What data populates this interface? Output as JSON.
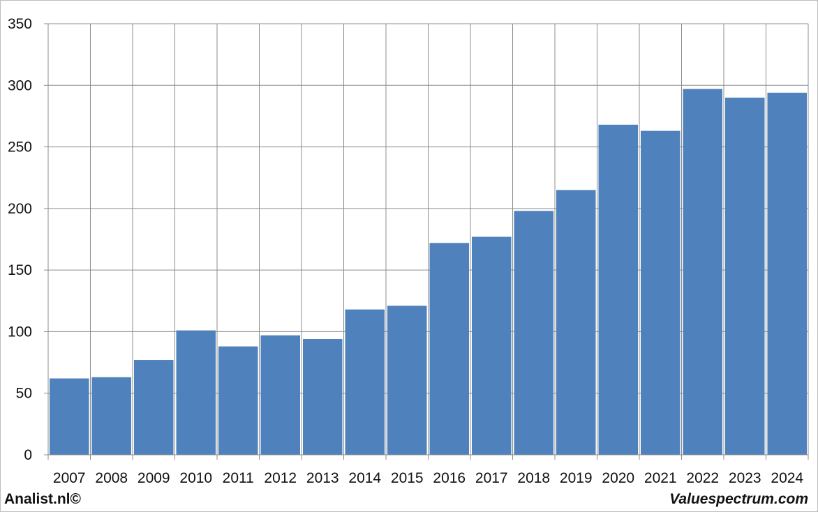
{
  "chart_data": {
    "type": "bar",
    "title": "",
    "xlabel": "",
    "ylabel": "",
    "categories": [
      "2007",
      "2008",
      "2009",
      "2010",
      "2011",
      "2012",
      "2013",
      "2014",
      "2015",
      "2016",
      "2017",
      "2018",
      "2019",
      "2020",
      "2021",
      "2022",
      "2023",
      "2024"
    ],
    "values": [
      62,
      63,
      77,
      101,
      88,
      97,
      94,
      118,
      121,
      172,
      177,
      198,
      215,
      268,
      263,
      297,
      290,
      294
    ],
    "ylim": [
      0,
      350
    ],
    "yticks": [
      0,
      50,
      100,
      150,
      200,
      250,
      300,
      350
    ],
    "grid": true,
    "bar_color": "#4F81BD",
    "legend": "none"
  },
  "footer": {
    "left": "Analist.nl©",
    "right": "Valuespectrum.com"
  }
}
